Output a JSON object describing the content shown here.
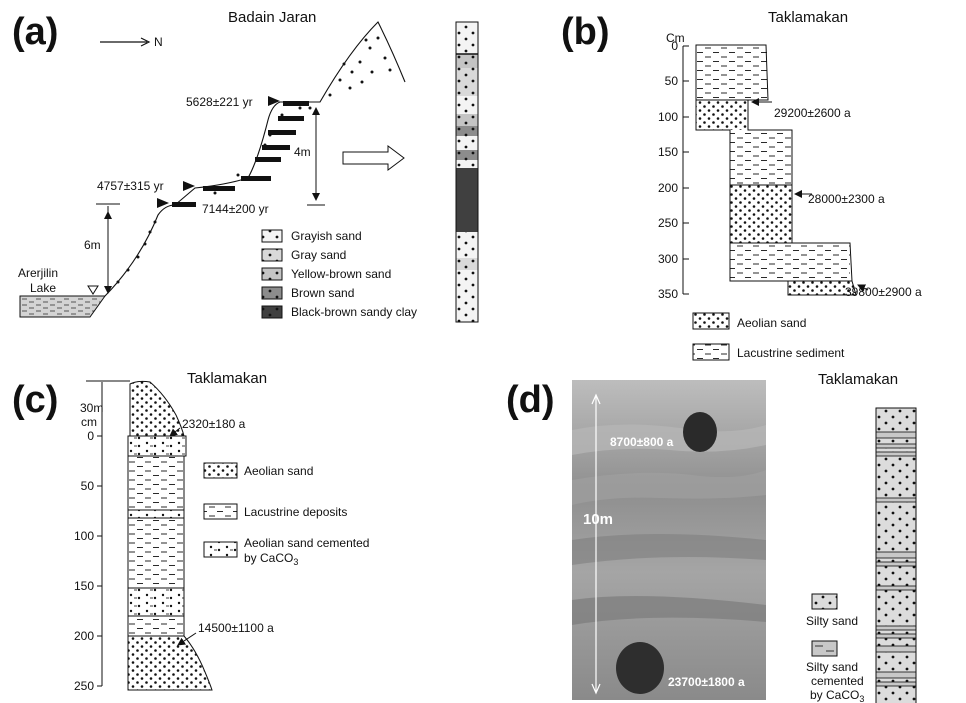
{
  "panels": {
    "a": {
      "letter": "(a)",
      "title": "Badain Jaran",
      "north": "N",
      "lake": [
        "Arerjilin",
        "Lake"
      ],
      "height_left": "6m",
      "height_right": "4m",
      "dates": [
        "5628±221 yr",
        "4757±315 yr",
        "7144±200 yr"
      ],
      "legend": [
        "Grayish sand",
        "Gray sand",
        "Yellow-brown sand",
        "Brown sand",
        "Black-brown sandy clay"
      ]
    },
    "b": {
      "letter": "(b)",
      "title": "Taklamakan",
      "unit": "Cm",
      "ticks": [
        "0",
        "50",
        "100",
        "150",
        "200",
        "250",
        "300",
        "350"
      ],
      "dates": [
        "29200±2600 a",
        "28000±2300 a",
        "39800±2900 a"
      ],
      "legend": [
        "Aeolian sand",
        "Lacustrine sediment"
      ]
    },
    "c": {
      "letter": "(c)",
      "title": "Taklamakan",
      "top_height": "30m",
      "unit": "cm",
      "ticks": [
        "0",
        "50",
        "100",
        "150",
        "200",
        "250"
      ],
      "dates": [
        "2320±180 a",
        "14500±1100 a"
      ],
      "legend": [
        "Aeolian sand",
        "Lacustrine deposits",
        "Aeolian sand cemented",
        "by CaCO",
        "3"
      ]
    },
    "d": {
      "letter": "(d)",
      "title": "Taklamakan",
      "height": "10m",
      "dates": [
        "8700±800 a",
        "23700±1800 a"
      ],
      "legend": [
        "Silty sand",
        "Silty sand",
        "cemented",
        "by CaCO",
        "3"
      ]
    }
  },
  "colors": {
    "grayish": "#f4f4f4",
    "gray": "#d9d9d9",
    "yellow_brown": "#c4c4c4",
    "brown": "#8c8c8c",
    "black_brown": "#404040",
    "lake": "#d4d4d4",
    "photo": "#9a9a9a"
  }
}
